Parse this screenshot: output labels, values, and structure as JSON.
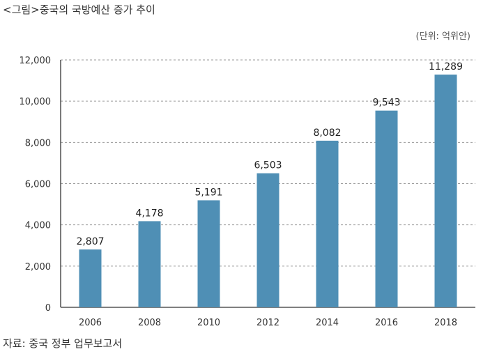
{
  "title": "<그림>중국의 국방예산 증가 추이",
  "unit": "(단위: 억위안)",
  "source": "자료: 중국 정부 업무보고서",
  "chart_data": {
    "type": "bar",
    "categories": [
      "2006",
      "2008",
      "2010",
      "2012",
      "2014",
      "2016",
      "2018"
    ],
    "values": [
      2807,
      4178,
      5191,
      6503,
      8082,
      9543,
      11289
    ],
    "data_labels": [
      "2,807",
      "4,178",
      "5,191",
      "6,503",
      "8,082",
      "9,543",
      "11,289"
    ],
    "y_ticks": [
      0,
      2000,
      4000,
      6000,
      8000,
      10000,
      12000
    ],
    "y_tick_labels": [
      "0",
      "2,000",
      "4,000",
      "6,000",
      "8,000",
      "10,000",
      "12,000"
    ],
    "ylim": [
      0,
      12000
    ],
    "grid": true,
    "bar_color": "#4f8fb5",
    "xlabel": "",
    "ylabel": ""
  }
}
